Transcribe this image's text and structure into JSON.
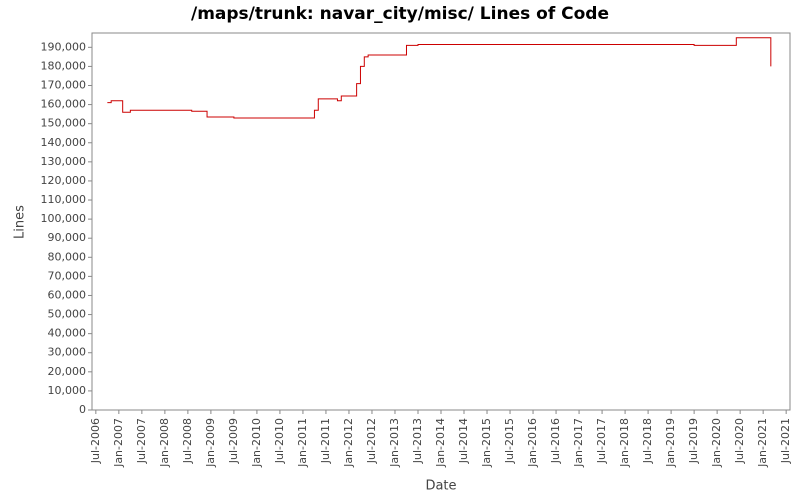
{
  "chart_data": {
    "type": "line",
    "title": "/maps/trunk: navar_city/misc/ Lines of Code",
    "x_label": "Date",
    "y_label": "Lines",
    "x": [
      "2006-10",
      "2006-11",
      "2007-02",
      "2007-04",
      "2008-08",
      "2008-12",
      "2009-07",
      "2011-04",
      "2011-05",
      "2011-10",
      "2011-11",
      "2012-03",
      "2012-04",
      "2012-05",
      "2012-06",
      "2013-04",
      "2013-07",
      "2019-07",
      "2020-06",
      "2021-03"
    ],
    "series": [
      {
        "name": "Lines",
        "color": "#cc0000",
        "values": [
          161000,
          162000,
          156000,
          157000,
          156500,
          153500,
          153000,
          157000,
          163000,
          162000,
          164500,
          171000,
          180000,
          185000,
          186000,
          191000,
          191500,
          191000,
          195000,
          180000
        ]
      }
    ],
    "xlim": [
      "2006-06",
      "2021-08"
    ],
    "xticks": [
      {
        "value": "2006-07",
        "label": "Jul-2006"
      },
      {
        "value": "2007-01",
        "label": "Jan-2007"
      },
      {
        "value": "2007-07",
        "label": "Jul-2007"
      },
      {
        "value": "2008-01",
        "label": "Jan-2008"
      },
      {
        "value": "2008-07",
        "label": "Jul-2008"
      },
      {
        "value": "2009-01",
        "label": "Jan-2009"
      },
      {
        "value": "2009-07",
        "label": "Jul-2009"
      },
      {
        "value": "2010-01",
        "label": "Jan-2010"
      },
      {
        "value": "2010-07",
        "label": "Jul-2010"
      },
      {
        "value": "2011-01",
        "label": "Jan-2011"
      },
      {
        "value": "2011-07",
        "label": "Jul-2011"
      },
      {
        "value": "2012-01",
        "label": "Jan-2012"
      },
      {
        "value": "2012-07",
        "label": "Jul-2012"
      },
      {
        "value": "2013-01",
        "label": "Jan-2013"
      },
      {
        "value": "2013-07",
        "label": "Jul-2013"
      },
      {
        "value": "2014-01",
        "label": "Jan-2014"
      },
      {
        "value": "2014-07",
        "label": "Jul-2014"
      },
      {
        "value": "2015-01",
        "label": "Jan-2015"
      },
      {
        "value": "2015-07",
        "label": "Jul-2015"
      },
      {
        "value": "2016-01",
        "label": "Jan-2016"
      },
      {
        "value": "2016-07",
        "label": "Jul-2016"
      },
      {
        "value": "2017-01",
        "label": "Jan-2017"
      },
      {
        "value": "2017-07",
        "label": "Jul-2017"
      },
      {
        "value": "2018-01",
        "label": "Jan-2018"
      },
      {
        "value": "2018-07",
        "label": "Jul-2018"
      },
      {
        "value": "2019-01",
        "label": "Jan-2019"
      },
      {
        "value": "2019-07",
        "label": "Jul-2019"
      },
      {
        "value": "2020-01",
        "label": "Jan-2020"
      },
      {
        "value": "2020-07",
        "label": "Jul-2020"
      },
      {
        "value": "2021-01",
        "label": "Jan-2021"
      },
      {
        "value": "2021-07",
        "label": "Jul-2021"
      }
    ],
    "ylim": [
      0,
      197500
    ],
    "yticks": [
      0,
      {
        "value": 10000,
        "label": "10,000"
      },
      {
        "value": 20000,
        "label": "20,000"
      },
      {
        "value": 30000,
        "label": "30,000"
      },
      {
        "value": 40000,
        "label": "40,000"
      },
      {
        "value": 50000,
        "label": "50,000"
      },
      {
        "value": 60000,
        "label": "60,000"
      },
      {
        "value": 70000,
        "label": "70,000"
      },
      {
        "value": 80000,
        "label": "80,000"
      },
      {
        "value": 90000,
        "label": "90,000"
      },
      {
        "value": 100000,
        "label": "100,000"
      },
      {
        "value": 110000,
        "label": "110,000"
      },
      {
        "value": 120000,
        "label": "120,000"
      },
      {
        "value": 130000,
        "label": "130,000"
      },
      {
        "value": 140000,
        "label": "140,000"
      },
      {
        "value": 150000,
        "label": "150,000"
      },
      {
        "value": 160000,
        "label": "160,000"
      },
      {
        "value": 170000,
        "label": "170,000"
      },
      {
        "value": 180000,
        "label": "180,000"
      },
      {
        "value": 190000,
        "label": "190,000"
      }
    ],
    "grid": false,
    "step": true
  }
}
